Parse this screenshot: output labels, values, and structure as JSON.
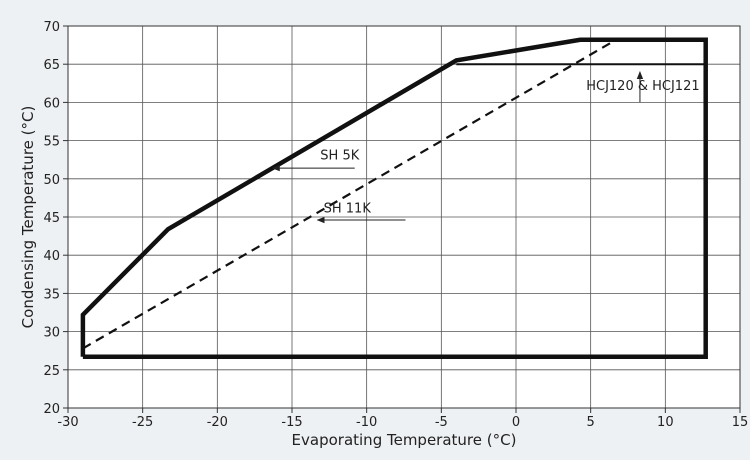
{
  "chart_data": {
    "type": "line",
    "title": "",
    "xlabel": "Evaporating Temperature (°C)",
    "ylabel": "Condensing Temperature (°C)",
    "xlim": [
      -30,
      15
    ],
    "ylim": [
      20,
      70
    ],
    "xticks": [
      -30,
      -25,
      -20,
      -15,
      -10,
      -5,
      0,
      5,
      10,
      15
    ],
    "yticks": [
      20,
      25,
      30,
      35,
      40,
      45,
      50,
      55,
      60,
      65,
      70
    ],
    "xtick_labels": [
      "-30",
      "-25",
      "-20",
      "-15",
      "-10",
      "-5",
      "0",
      "5",
      "10",
      "15"
    ],
    "ytick_labels": [
      "20",
      "25",
      "30",
      "35",
      "40",
      "45",
      "50",
      "55",
      "60",
      "65",
      "70"
    ],
    "grid": true,
    "series": [
      {
        "style": "solid-thick",
        "x": [
          -29,
          -29,
          -23.3,
          -4,
          4.3,
          12.7,
          12.7,
          -29
        ],
        "y": [
          26.7,
          32.2,
          43.4,
          65.5,
          68.2,
          68.2,
          26.7,
          26.7
        ]
      },
      {
        "style": "solid",
        "x": [
          -4,
          12.7
        ],
        "y": [
          65,
          65
        ]
      },
      {
        "style": "dashed",
        "x": [
          -29,
          6.7
        ],
        "y": [
          27.8,
          68.2
        ]
      }
    ],
    "annotations": [
      {
        "text": "SH 5K",
        "text_x": -11.8,
        "text_y": 52.5,
        "line_x": [
          -10.8,
          -16.3
        ],
        "line_y": [
          51.4,
          51.4
        ]
      },
      {
        "text": "SH 11K",
        "text_x": -11.3,
        "text_y": 45.6,
        "line_x": [
          -7.4,
          -13.3
        ],
        "line_y": [
          44.6,
          44.6
        ]
      },
      {
        "text": "HCJ120 & HCJ121",
        "text_x": 8.5,
        "text_y": 61.6,
        "line_x": [
          8.3,
          8.3
        ],
        "line_y": [
          60.0,
          64.0
        ]
      }
    ]
  }
}
